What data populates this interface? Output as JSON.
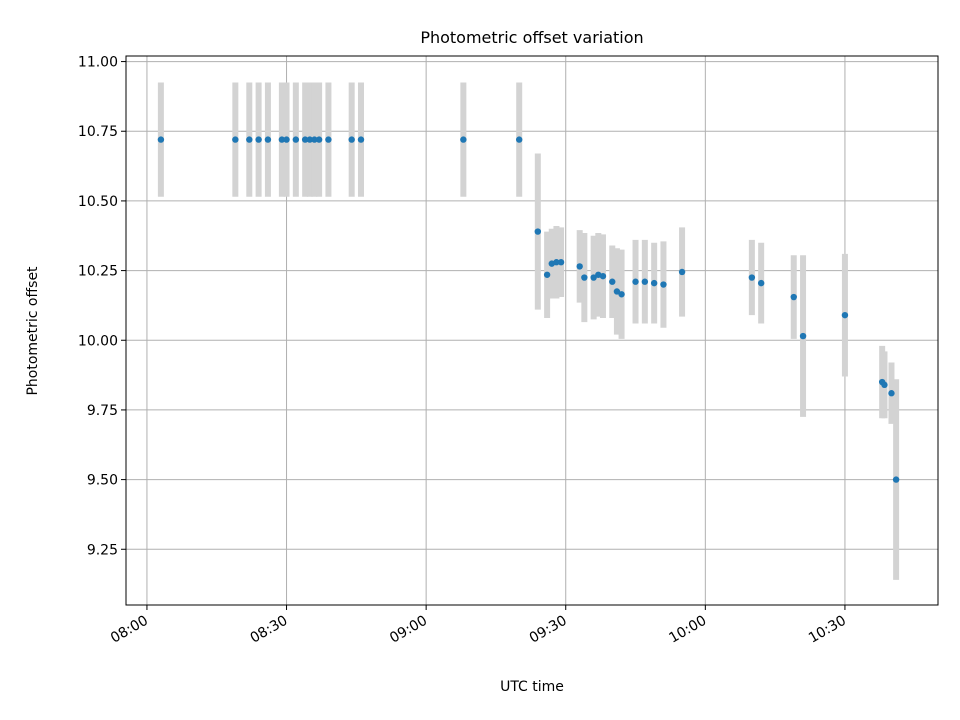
{
  "chart_data": {
    "type": "scatter",
    "title": "Photometric offset variation",
    "xlabel": "UTC time",
    "ylabel": "Photometric offset",
    "x_ticks": [
      "08:00",
      "08:30",
      "09:00",
      "09:30",
      "10:00",
      "10:30"
    ],
    "y_ticks": [
      "9.25",
      "9.50",
      "9.75",
      "10.00",
      "10.25",
      "10.50",
      "10.75",
      "11.00"
    ],
    "xlim": [
      "07:55:30",
      "10:50:00"
    ],
    "ylim": [
      9.05,
      11.02
    ],
    "grid": true,
    "legend": "none",
    "colors": {
      "points": "#1f77b4",
      "error_bars": "#d3d3d3",
      "grid": "#b0b0b0"
    },
    "series": [
      {
        "x": [
          "08:03",
          "08:19",
          "08:22",
          "08:24",
          "08:26",
          "08:29",
          "08:30",
          "08:32",
          "08:34",
          "08:35",
          "08:36",
          "08:37",
          "08:39",
          "08:44",
          "08:46",
          "09:08",
          "09:20",
          "09:24",
          "09:26",
          "09:27",
          "09:28",
          "09:29",
          "09:33",
          "09:34",
          "09:36",
          "09:37",
          "09:38",
          "09:40",
          "09:41",
          "09:42",
          "09:45",
          "09:47",
          "09:49",
          "09:51",
          "09:55",
          "10:10",
          "10:12",
          "10:19",
          "10:21",
          "10:30",
          "10:38",
          "10:38:30",
          "10:40",
          "10:41"
        ],
        "y": [
          10.72,
          10.72,
          10.72,
          10.72,
          10.72,
          10.72,
          10.72,
          10.72,
          10.72,
          10.72,
          10.72,
          10.72,
          10.72,
          10.72,
          10.72,
          10.72,
          10.72,
          10.39,
          10.235,
          10.275,
          10.28,
          10.28,
          10.265,
          10.225,
          10.225,
          10.235,
          10.23,
          10.21,
          10.175,
          10.165,
          10.21,
          10.21,
          10.205,
          10.2,
          10.245,
          10.225,
          10.205,
          10.155,
          10.015,
          10.09,
          9.85,
          9.84,
          9.81,
          9.5
        ],
        "err": [
          0.205,
          0.205,
          0.205,
          0.205,
          0.205,
          0.205,
          0.205,
          0.205,
          0.205,
          0.205,
          0.205,
          0.205,
          0.205,
          0.205,
          0.205,
          0.205,
          0.205,
          0.28,
          0.155,
          0.125,
          0.13,
          0.125,
          0.13,
          0.16,
          0.15,
          0.15,
          0.15,
          0.13,
          0.155,
          0.16,
          0.15,
          0.15,
          0.145,
          0.155,
          0.16,
          0.135,
          0.145,
          0.15,
          0.29,
          0.22,
          0.13,
          0.12,
          0.11,
          0.36
        ]
      }
    ]
  }
}
